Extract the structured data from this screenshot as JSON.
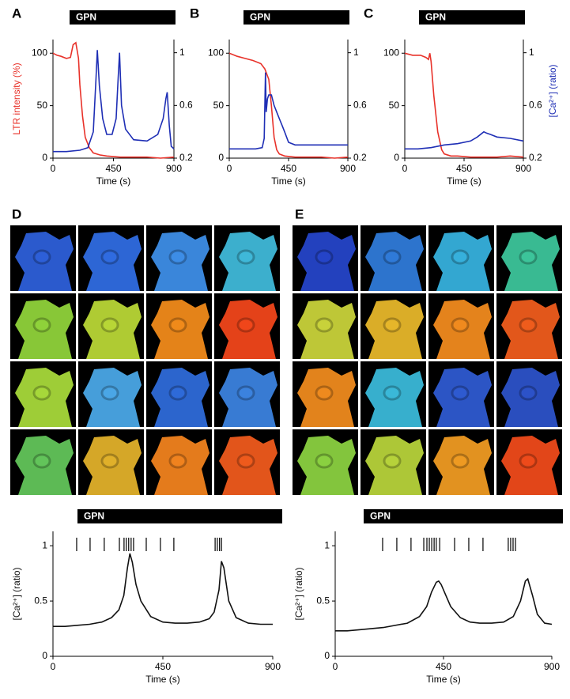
{
  "chart_data": [
    {
      "type": "line",
      "label": "A",
      "annotation": "GPN",
      "xlabel": "Time (s)",
      "ylabel": "LTR intensity (%)",
      "xlim": [
        0,
        900
      ],
      "xticks": [
        0,
        450,
        900
      ],
      "ylim": [
        0,
        113
      ],
      "yticks": [
        0,
        50,
        100
      ],
      "y2lim": [
        0.2,
        1.1
      ],
      "y2ticks": [
        0.2,
        0.6,
        1
      ],
      "series": [
        {
          "color": "#e8322a",
          "axis": "y",
          "x": [
            0,
            30,
            60,
            100,
            130,
            150,
            170,
            190,
            200,
            220,
            240,
            270,
            300,
            350,
            400,
            500,
            600,
            700,
            800,
            900
          ],
          "values": [
            100,
            98,
            97,
            95,
            96,
            108,
            110,
            95,
            70,
            40,
            20,
            10,
            5,
            3,
            2,
            1,
            1,
            1,
            0,
            1
          ]
        },
        {
          "color": "#1f2fb5",
          "axis": "y2",
          "x": [
            0,
            100,
            200,
            260,
            300,
            320,
            330,
            345,
            370,
            400,
            440,
            470,
            485,
            495,
            510,
            540,
            600,
            700,
            780,
            820,
            840,
            850,
            865,
            880,
            900
          ],
          "values": [
            0.25,
            0.25,
            0.26,
            0.28,
            0.4,
            0.8,
            1.02,
            0.75,
            0.5,
            0.38,
            0.38,
            0.5,
            0.8,
            1.0,
            0.6,
            0.42,
            0.34,
            0.33,
            0.38,
            0.5,
            0.65,
            0.7,
            0.45,
            0.29,
            0.27
          ]
        }
      ]
    },
    {
      "type": "line",
      "label": "B",
      "annotation": "GPN",
      "xlabel": "Time (s)",
      "xlim": [
        0,
        900
      ],
      "xticks": [
        0,
        450,
        900
      ],
      "ylim": [
        0,
        113
      ],
      "yticks": [
        0,
        50,
        100
      ],
      "y2lim": [
        0.2,
        1.1
      ],
      "y2ticks": [
        0.2,
        0.6,
        1
      ],
      "series": [
        {
          "color": "#e8322a",
          "axis": "y",
          "x": [
            0,
            60,
            120,
            180,
            240,
            270,
            300,
            320,
            340,
            360,
            380,
            420,
            500,
            600,
            700,
            800,
            900
          ],
          "values": [
            100,
            97,
            95,
            93,
            90,
            85,
            75,
            50,
            20,
            8,
            4,
            2,
            1,
            1,
            1,
            0,
            1
          ]
        },
        {
          "color": "#1f2fb5",
          "axis": "y2",
          "x": [
            0,
            100,
            200,
            250,
            265,
            275,
            280,
            290,
            300,
            320,
            340,
            360,
            380,
            400,
            420,
            450,
            500,
            600,
            700,
            800,
            900
          ],
          "values": [
            0.27,
            0.27,
            0.27,
            0.28,
            0.35,
            0.85,
            0.55,
            0.65,
            0.68,
            0.68,
            0.6,
            0.55,
            0.5,
            0.45,
            0.4,
            0.32,
            0.3,
            0.3,
            0.3,
            0.3,
            0.3
          ]
        }
      ]
    },
    {
      "type": "line",
      "label": "C",
      "annotation": "GPN",
      "xlabel": "Time (s)",
      "y2label": "[Ca²⁺] (ratio)",
      "xlim": [
        0,
        900
      ],
      "xticks": [
        0,
        450,
        900
      ],
      "ylim": [
        0,
        113
      ],
      "yticks": [
        0,
        50,
        100
      ],
      "y2lim": [
        0.2,
        1.1
      ],
      "y2ticks": [
        0.2,
        0.6,
        1
      ],
      "series": [
        {
          "color": "#e8322a",
          "axis": "y",
          "x": [
            0,
            60,
            120,
            160,
            180,
            190,
            200,
            220,
            250,
            280,
            300,
            350,
            400,
            500,
            600,
            700,
            800,
            900
          ],
          "values": [
            100,
            98,
            98,
            96,
            94,
            100,
            92,
            60,
            25,
            8,
            4,
            2,
            2,
            1,
            1,
            1,
            2,
            1
          ]
        },
        {
          "color": "#1f2fb5",
          "axis": "y2",
          "x": [
            0,
            100,
            200,
            300,
            400,
            500,
            550,
            600,
            620,
            650,
            700,
            800,
            900
          ],
          "values": [
            0.27,
            0.27,
            0.28,
            0.3,
            0.31,
            0.33,
            0.36,
            0.4,
            0.39,
            0.38,
            0.36,
            0.35,
            0.33
          ]
        }
      ]
    },
    {
      "type": "line",
      "label": "D",
      "annotation": "GPN",
      "xlabel": "Time (s)",
      "ylabel": "[Ca²⁺] (ratio)",
      "xlim": [
        0,
        900
      ],
      "xticks": [
        0,
        450,
        900
      ],
      "ylim": [
        0,
        1.13
      ],
      "yticks": [
        0,
        0.5,
        1
      ],
      "events": [
        97,
        152,
        210,
        272,
        291,
        300,
        310,
        320,
        330,
        382,
        440,
        495,
        664,
        673,
        682,
        690
      ],
      "series": [
        {
          "color": "#111111",
          "axis": "y",
          "x": [
            0,
            50,
            100,
            150,
            200,
            240,
            270,
            290,
            305,
            315,
            325,
            340,
            360,
            400,
            450,
            500,
            550,
            600,
            640,
            660,
            680,
            690,
            700,
            720,
            750,
            800,
            850,
            900
          ],
          "values": [
            0.27,
            0.27,
            0.28,
            0.29,
            0.31,
            0.35,
            0.42,
            0.55,
            0.8,
            0.93,
            0.85,
            0.65,
            0.5,
            0.36,
            0.31,
            0.3,
            0.3,
            0.31,
            0.34,
            0.4,
            0.6,
            0.86,
            0.8,
            0.5,
            0.35,
            0.3,
            0.29,
            0.29
          ]
        }
      ]
    },
    {
      "type": "line",
      "label": "E",
      "annotation": "GPN",
      "xlabel": "Time (s)",
      "ylabel": "[Ca²⁺] (ratio)",
      "xlim": [
        0,
        900
      ],
      "xticks": [
        0,
        450,
        900
      ],
      "ylim": [
        0,
        1.13
      ],
      "yticks": [
        0,
        0.5,
        1
      ],
      "events": [
        197,
        256,
        315,
        368,
        381,
        391,
        401,
        411,
        420,
        434,
        496,
        555,
        614,
        719,
        729,
        739,
        749
      ],
      "series": [
        {
          "color": "#111111",
          "axis": "y",
          "x": [
            0,
            50,
            100,
            200,
            300,
            350,
            380,
            400,
            420,
            430,
            440,
            460,
            480,
            520,
            560,
            600,
            650,
            700,
            740,
            770,
            790,
            800,
            820,
            840,
            870,
            900
          ],
          "values": [
            0.23,
            0.23,
            0.24,
            0.26,
            0.3,
            0.36,
            0.45,
            0.58,
            0.67,
            0.68,
            0.65,
            0.55,
            0.45,
            0.35,
            0.31,
            0.3,
            0.3,
            0.31,
            0.36,
            0.5,
            0.68,
            0.7,
            0.55,
            0.38,
            0.3,
            0.29
          ]
        }
      ]
    }
  ]
}
